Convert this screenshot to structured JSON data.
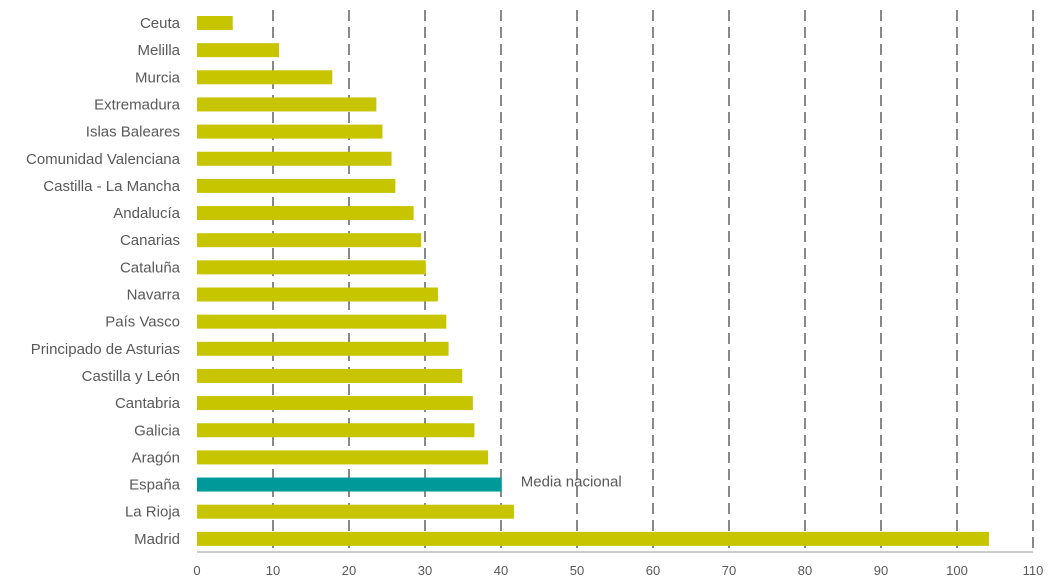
{
  "chart_data": {
    "type": "bar",
    "orientation": "horizontal",
    "title": "",
    "xlabel": "",
    "ylabel": "",
    "xlim": [
      0,
      110
    ],
    "xticks": [
      0,
      10,
      20,
      30,
      40,
      50,
      60,
      70,
      80,
      90,
      100,
      110
    ],
    "grid": "vertical dashed",
    "categories": [
      "Ceuta",
      "Melilla",
      "Murcia",
      "Extremadura",
      "Islas Baleares",
      "Comunidad Valenciana",
      "Castilla - La Mancha",
      "Andalucía",
      "Canarias",
      "Cataluña",
      "Navarra",
      "País Vasco",
      "Principado de Asturias",
      "Castilla y León",
      "Cantabria",
      "Galicia",
      "Aragón",
      "España",
      "La Rioja",
      "Madrid"
    ],
    "values": [
      4.7,
      10.8,
      17.8,
      23.6,
      24.4,
      25.6,
      26.1,
      28.5,
      29.5,
      30.1,
      31.7,
      32.8,
      33.1,
      34.9,
      36.3,
      36.5,
      38.3,
      40.1,
      41.7,
      104.2
    ],
    "highlight": "España",
    "colors": {
      "bar": "#c7c400",
      "highlight": "#009999",
      "grid": "#3a3a3a"
    },
    "annotations": [
      {
        "text": "Media nacional",
        "category": "España"
      }
    ]
  }
}
